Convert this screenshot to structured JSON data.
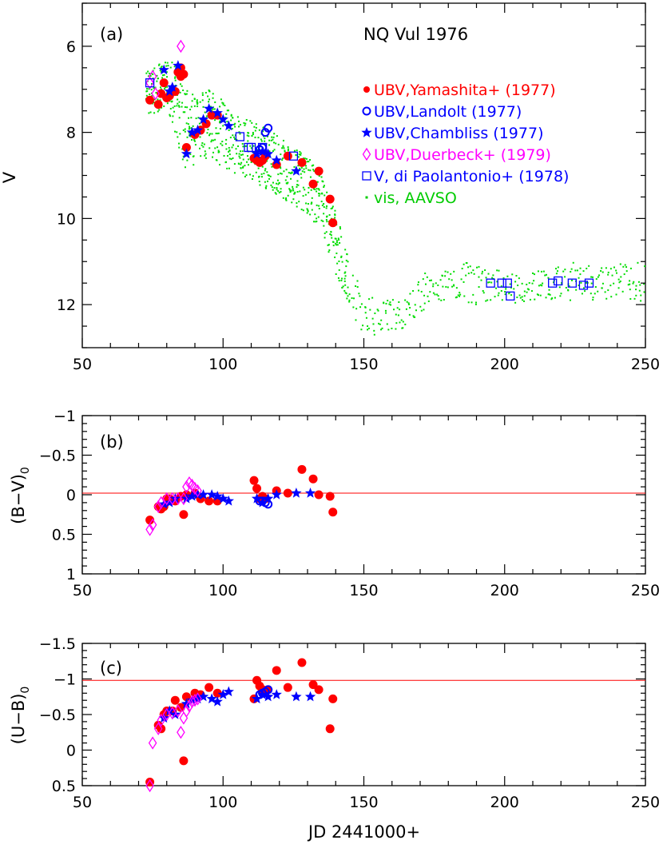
{
  "chart_data": [
    {
      "type": "scatter",
      "panel_label": "(a)",
      "title": "NQ Vul 1976",
      "xlabel": "",
      "ylabel": "V",
      "xlim": [
        50,
        250
      ],
      "ylim": [
        13,
        5
      ],
      "xticks": [
        50,
        100,
        150,
        200,
        250
      ],
      "yticks": [
        6,
        8,
        10,
        12
      ],
      "legend": {
        "placement": "right",
        "entries": [
          {
            "symbol": "•",
            "label": "UBV,Yamashita+ (1977)",
            "color": "#ff0000"
          },
          {
            "symbol": "o",
            "label": "UBV,Landolt (1977)",
            "color": "#0000ff"
          },
          {
            "symbol": "★",
            "label": "UBV,Chambliss (1977)",
            "color": "#0000ff"
          },
          {
            "symbol": "◊",
            "label": "UBV,Duerbeck+ (1979)",
            "color": "#ff00ff"
          },
          {
            "symbol": "□",
            "label": "V,  di Paolantonio+ (1978)",
            "color": "#0000ff"
          },
          {
            "symbol": "·",
            "label": "vis,  AAVSO",
            "color": "#00cc00"
          }
        ]
      },
      "aavso_envelope": [
        [
          74,
          6.5,
          7.6
        ],
        [
          78,
          6.4,
          7.6
        ],
        [
          82,
          6.3,
          7.8
        ],
        [
          86,
          6.8,
          8.9
        ],
        [
          90,
          7.2,
          8.8
        ],
        [
          95,
          7.0,
          8.6
        ],
        [
          100,
          7.2,
          8.8
        ],
        [
          105,
          7.6,
          9.0
        ],
        [
          110,
          7.7,
          9.1
        ],
        [
          115,
          7.9,
          9.3
        ],
        [
          120,
          8.1,
          9.5
        ],
        [
          125,
          8.3,
          9.7
        ],
        [
          130,
          8.6,
          9.9
        ],
        [
          135,
          8.9,
          10.3
        ],
        [
          139,
          9.6,
          11.0
        ],
        [
          142,
          10.3,
          11.6
        ],
        [
          146,
          11.2,
          12.4
        ],
        [
          150,
          11.7,
          12.7
        ],
        [
          155,
          11.9,
          12.7
        ],
        [
          160,
          11.8,
          12.6
        ],
        [
          165,
          11.9,
          12.7
        ],
        [
          170,
          11.2,
          12.2
        ],
        [
          175,
          11.3,
          12.0
        ],
        [
          180,
          11.2,
          12.0
        ],
        [
          185,
          11.0,
          12.0
        ],
        [
          190,
          11.1,
          12.0
        ],
        [
          195,
          11.2,
          11.9
        ],
        [
          200,
          11.2,
          11.9
        ],
        [
          205,
          11.3,
          12.0
        ],
        [
          210,
          11.2,
          11.9
        ],
        [
          215,
          11.2,
          11.9
        ],
        [
          220,
          11.1,
          11.9
        ],
        [
          225,
          11.0,
          11.9
        ],
        [
          230,
          11.1,
          11.9
        ],
        [
          235,
          11.1,
          11.9
        ],
        [
          240,
          11.0,
          11.9
        ],
        [
          245,
          11.0,
          11.9
        ],
        [
          250,
          11.0,
          12.0
        ]
      ],
      "series": [
        {
          "name": "UBV,Yamashita+ (1977)",
          "marker": "dot",
          "color": "#ff0000",
          "x": [
            74,
            77,
            78,
            79,
            80,
            81,
            83,
            84,
            85,
            85,
            86,
            87,
            90,
            92,
            94,
            96,
            98,
            111,
            112,
            113,
            114,
            115,
            119,
            123,
            128,
            132,
            134,
            138,
            139
          ],
          "y": [
            7.25,
            7.35,
            7.1,
            6.85,
            7.2,
            7.15,
            7.05,
            6.6,
            6.5,
            6.7,
            6.65,
            8.35,
            8.05,
            7.95,
            7.8,
            7.6,
            7.6,
            8.6,
            8.65,
            8.7,
            8.65,
            8.55,
            8.75,
            8.55,
            8.7,
            9.2,
            8.9,
            9.55,
            10.1
          ]
        },
        {
          "name": "UBV,Landolt (1977)",
          "marker": "circle",
          "color": "#0000ff",
          "x": [
            113,
            114,
            115,
            116
          ],
          "y": [
            8.4,
            8.35,
            8.0,
            7.9
          ]
        },
        {
          "name": "UBV,Chambliss (1977)",
          "marker": "star",
          "color": "#0000ff",
          "x": [
            79,
            81,
            82,
            84,
            87,
            89,
            91,
            93,
            95,
            98,
            100,
            102,
            112,
            114,
            116,
            119,
            126
          ],
          "y": [
            6.55,
            7.05,
            6.95,
            6.45,
            8.5,
            8.0,
            7.95,
            7.7,
            7.45,
            7.55,
            7.7,
            7.85,
            8.5,
            8.45,
            8.5,
            8.65,
            8.9
          ]
        },
        {
          "name": "UBV,Duerbeck+ (1979)",
          "marker": "diamond",
          "color": "#ff00ff",
          "x": [
            74,
            75,
            76,
            85
          ],
          "y": [
            6.85,
            6.7,
            7.1,
            6.0
          ]
        },
        {
          "name": "V,  di Paolantonio+ (1978)",
          "marker": "square",
          "color": "#0000ff",
          "x": [
            74,
            106,
            109,
            110,
            114,
            125,
            195,
            199,
            201,
            202,
            217,
            219,
            224,
            228,
            230
          ],
          "y": [
            6.85,
            8.1,
            8.35,
            8.35,
            8.35,
            8.55,
            11.5,
            11.5,
            11.5,
            11.8,
            11.5,
            11.45,
            11.5,
            11.55,
            11.5
          ]
        }
      ]
    },
    {
      "type": "scatter",
      "panel_label": "(b)",
      "xlabel": "",
      "ylabel_main": "(B−V)",
      "ylabel_sub": "0",
      "xlim": [
        50,
        250
      ],
      "ylim": [
        1,
        -1
      ],
      "xticks": [
        50,
        100,
        150,
        200,
        250
      ],
      "yticks": [
        -1,
        -0.5,
        0,
        0.5,
        1
      ],
      "ytick_labels": [
        "−1",
        "−0.5",
        "0",
        "0.5",
        "1"
      ],
      "reference_line": {
        "y": -0.02,
        "color": "#ff0000"
      },
      "series": [
        {
          "name": "Yamashita",
          "marker": "dot",
          "color": "#ff0000",
          "x": [
            74,
            77,
            78,
            79,
            80,
            81,
            83,
            85,
            86,
            87,
            90,
            92,
            95,
            98,
            111,
            112,
            113,
            114,
            115,
            119,
            123,
            128,
            132,
            134,
            138,
            139
          ],
          "y": [
            0.32,
            0.15,
            0.18,
            0.15,
            0.05,
            0.05,
            0.08,
            0.02,
            0.25,
            0.0,
            -0.02,
            0.05,
            0.08,
            0.08,
            -0.18,
            -0.08,
            0.05,
            0.02,
            0.05,
            -0.05,
            -0.02,
            -0.32,
            -0.2,
            0.0,
            0.02,
            0.22
          ]
        },
        {
          "name": "Landolt",
          "marker": "circle",
          "color": "#0000ff",
          "x": [
            113,
            114,
            115,
            116
          ],
          "y": [
            0.08,
            0.08,
            0.1,
            0.12
          ]
        },
        {
          "name": "Chambliss",
          "marker": "star",
          "color": "#0000ff",
          "x": [
            79,
            81,
            83,
            87,
            89,
            91,
            93,
            96,
            98,
            100,
            102,
            112,
            114,
            116,
            119,
            126,
            131
          ],
          "y": [
            0.12,
            0.1,
            0.05,
            0.05,
            0.02,
            0.0,
            0.0,
            0.0,
            0.02,
            0.05,
            0.08,
            0.05,
            0.1,
            0.05,
            0.0,
            -0.02,
            -0.02
          ]
        },
        {
          "name": "Duerbeck",
          "marker": "diamond",
          "color": "#ff00ff",
          "x": [
            74,
            75,
            77,
            78,
            80,
            82,
            84,
            86,
            87,
            88,
            89,
            90,
            91
          ],
          "y": [
            0.44,
            0.38,
            0.15,
            0.1,
            0.05,
            0.05,
            0.05,
            0.05,
            -0.1,
            -0.15,
            -0.12,
            -0.08,
            -0.05
          ]
        }
      ]
    },
    {
      "type": "scatter",
      "panel_label": "(c)",
      "xlabel": "JD 2441000+",
      "ylabel_main": "(U−B)",
      "ylabel_sub": "0",
      "xlim": [
        50,
        250
      ],
      "ylim": [
        0.5,
        -1.5
      ],
      "xticks": [
        50,
        100,
        150,
        200,
        250
      ],
      "yticks": [
        -1.5,
        -1,
        -0.5,
        0,
        0.5
      ],
      "ytick_labels": [
        "−1.5",
        "−1",
        "−0.5",
        "0",
        "0.5"
      ],
      "reference_line": {
        "y": -0.98,
        "color": "#ff0000"
      },
      "series": [
        {
          "name": "Yamashita",
          "marker": "dot",
          "color": "#ff0000",
          "x": [
            74,
            77,
            78,
            79,
            80,
            82,
            83,
            85,
            86,
            87,
            90,
            92,
            95,
            98,
            111,
            112,
            113,
            114,
            116,
            119,
            123,
            128,
            132,
            134,
            138,
            139
          ],
          "y": [
            0.45,
            -0.35,
            -0.3,
            -0.5,
            -0.55,
            -0.55,
            -0.7,
            -0.6,
            0.15,
            -0.75,
            -0.8,
            -0.78,
            -0.88,
            -0.8,
            -0.72,
            -0.98,
            -0.9,
            -0.85,
            -0.85,
            -1.12,
            -0.88,
            -1.23,
            -0.92,
            -0.85,
            -0.3,
            -0.72
          ]
        },
        {
          "name": "Landolt",
          "marker": "circle",
          "color": "#0000ff",
          "x": [
            113,
            114,
            115,
            116
          ],
          "y": [
            -0.78,
            -0.8,
            -0.82,
            -0.85
          ]
        },
        {
          "name": "Chambliss",
          "marker": "star",
          "color": "#0000ff",
          "x": [
            79,
            81,
            83,
            87,
            89,
            91,
            93,
            96,
            98,
            100,
            102,
            112,
            114,
            116,
            119,
            126,
            131
          ],
          "y": [
            -0.45,
            -0.55,
            -0.5,
            -0.65,
            -0.7,
            -0.72,
            -0.75,
            -0.72,
            -0.68,
            -0.78,
            -0.82,
            -0.72,
            -0.78,
            -0.75,
            -0.78,
            -0.75,
            -0.75
          ]
        },
        {
          "name": "Duerbeck",
          "marker": "diamond",
          "color": "#ff00ff",
          "x": [
            74,
            75,
            77,
            78,
            80,
            82,
            84,
            85,
            86,
            87,
            88,
            89,
            90,
            91
          ],
          "y": [
            0.5,
            -0.1,
            -0.3,
            -0.42,
            -0.5,
            -0.52,
            -0.55,
            -0.25,
            -0.45,
            -0.55,
            -0.62,
            -0.68,
            -0.7,
            -0.72
          ]
        }
      ]
    }
  ]
}
